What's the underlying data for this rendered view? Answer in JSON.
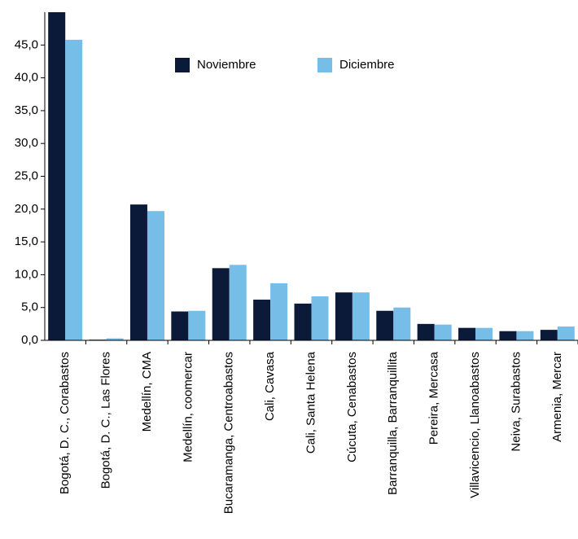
{
  "chart_data": {
    "type": "bar",
    "categories": [
      "Bogotá, D. C., Corabastos",
      "Bogotá, D. C., Las Flores",
      "Medellín, CMA",
      "Medellín, coomercar",
      "Bucaramanga, Centroabastos",
      "Cali, Cavasa",
      "Cali, Santa Helena",
      "Cúcuta, Cenabastos",
      "Barranquilla, Barranquillita",
      "Pereira, Mercasa",
      "Villavicencio, Llanoabastos",
      "Neiva, Surabastos",
      "Armenia, Mercar"
    ],
    "series": [
      {
        "name": "Noviembre",
        "color": "#0b1a38",
        "values": [
          50.0,
          0.1,
          20.7,
          4.4,
          11.0,
          6.2,
          5.6,
          7.3,
          4.5,
          2.5,
          1.9,
          1.4,
          1.6
        ]
      },
      {
        "name": "Diciembre",
        "color": "#76bde8",
        "values": [
          45.8,
          0.3,
          19.7,
          4.5,
          11.5,
          8.7,
          6.7,
          7.3,
          5.0,
          2.4,
          1.9,
          1.4,
          2.1
        ]
      }
    ],
    "ylim": [
      0,
      50
    ],
    "yticks": [
      {
        "value": 0,
        "label": "0,0"
      },
      {
        "value": 5,
        "label": "5,0"
      },
      {
        "value": 10,
        "label": "10,0"
      },
      {
        "value": 15,
        "label": "15,0"
      },
      {
        "value": 20,
        "label": "20,0"
      },
      {
        "value": 25,
        "label": "25,0"
      },
      {
        "value": 30,
        "label": "30,0"
      },
      {
        "value": 35,
        "label": "35,0"
      },
      {
        "value": 40,
        "label": "40,0"
      },
      {
        "value": 45,
        "label": "45,0"
      }
    ],
    "legend": "top",
    "grid": false
  }
}
